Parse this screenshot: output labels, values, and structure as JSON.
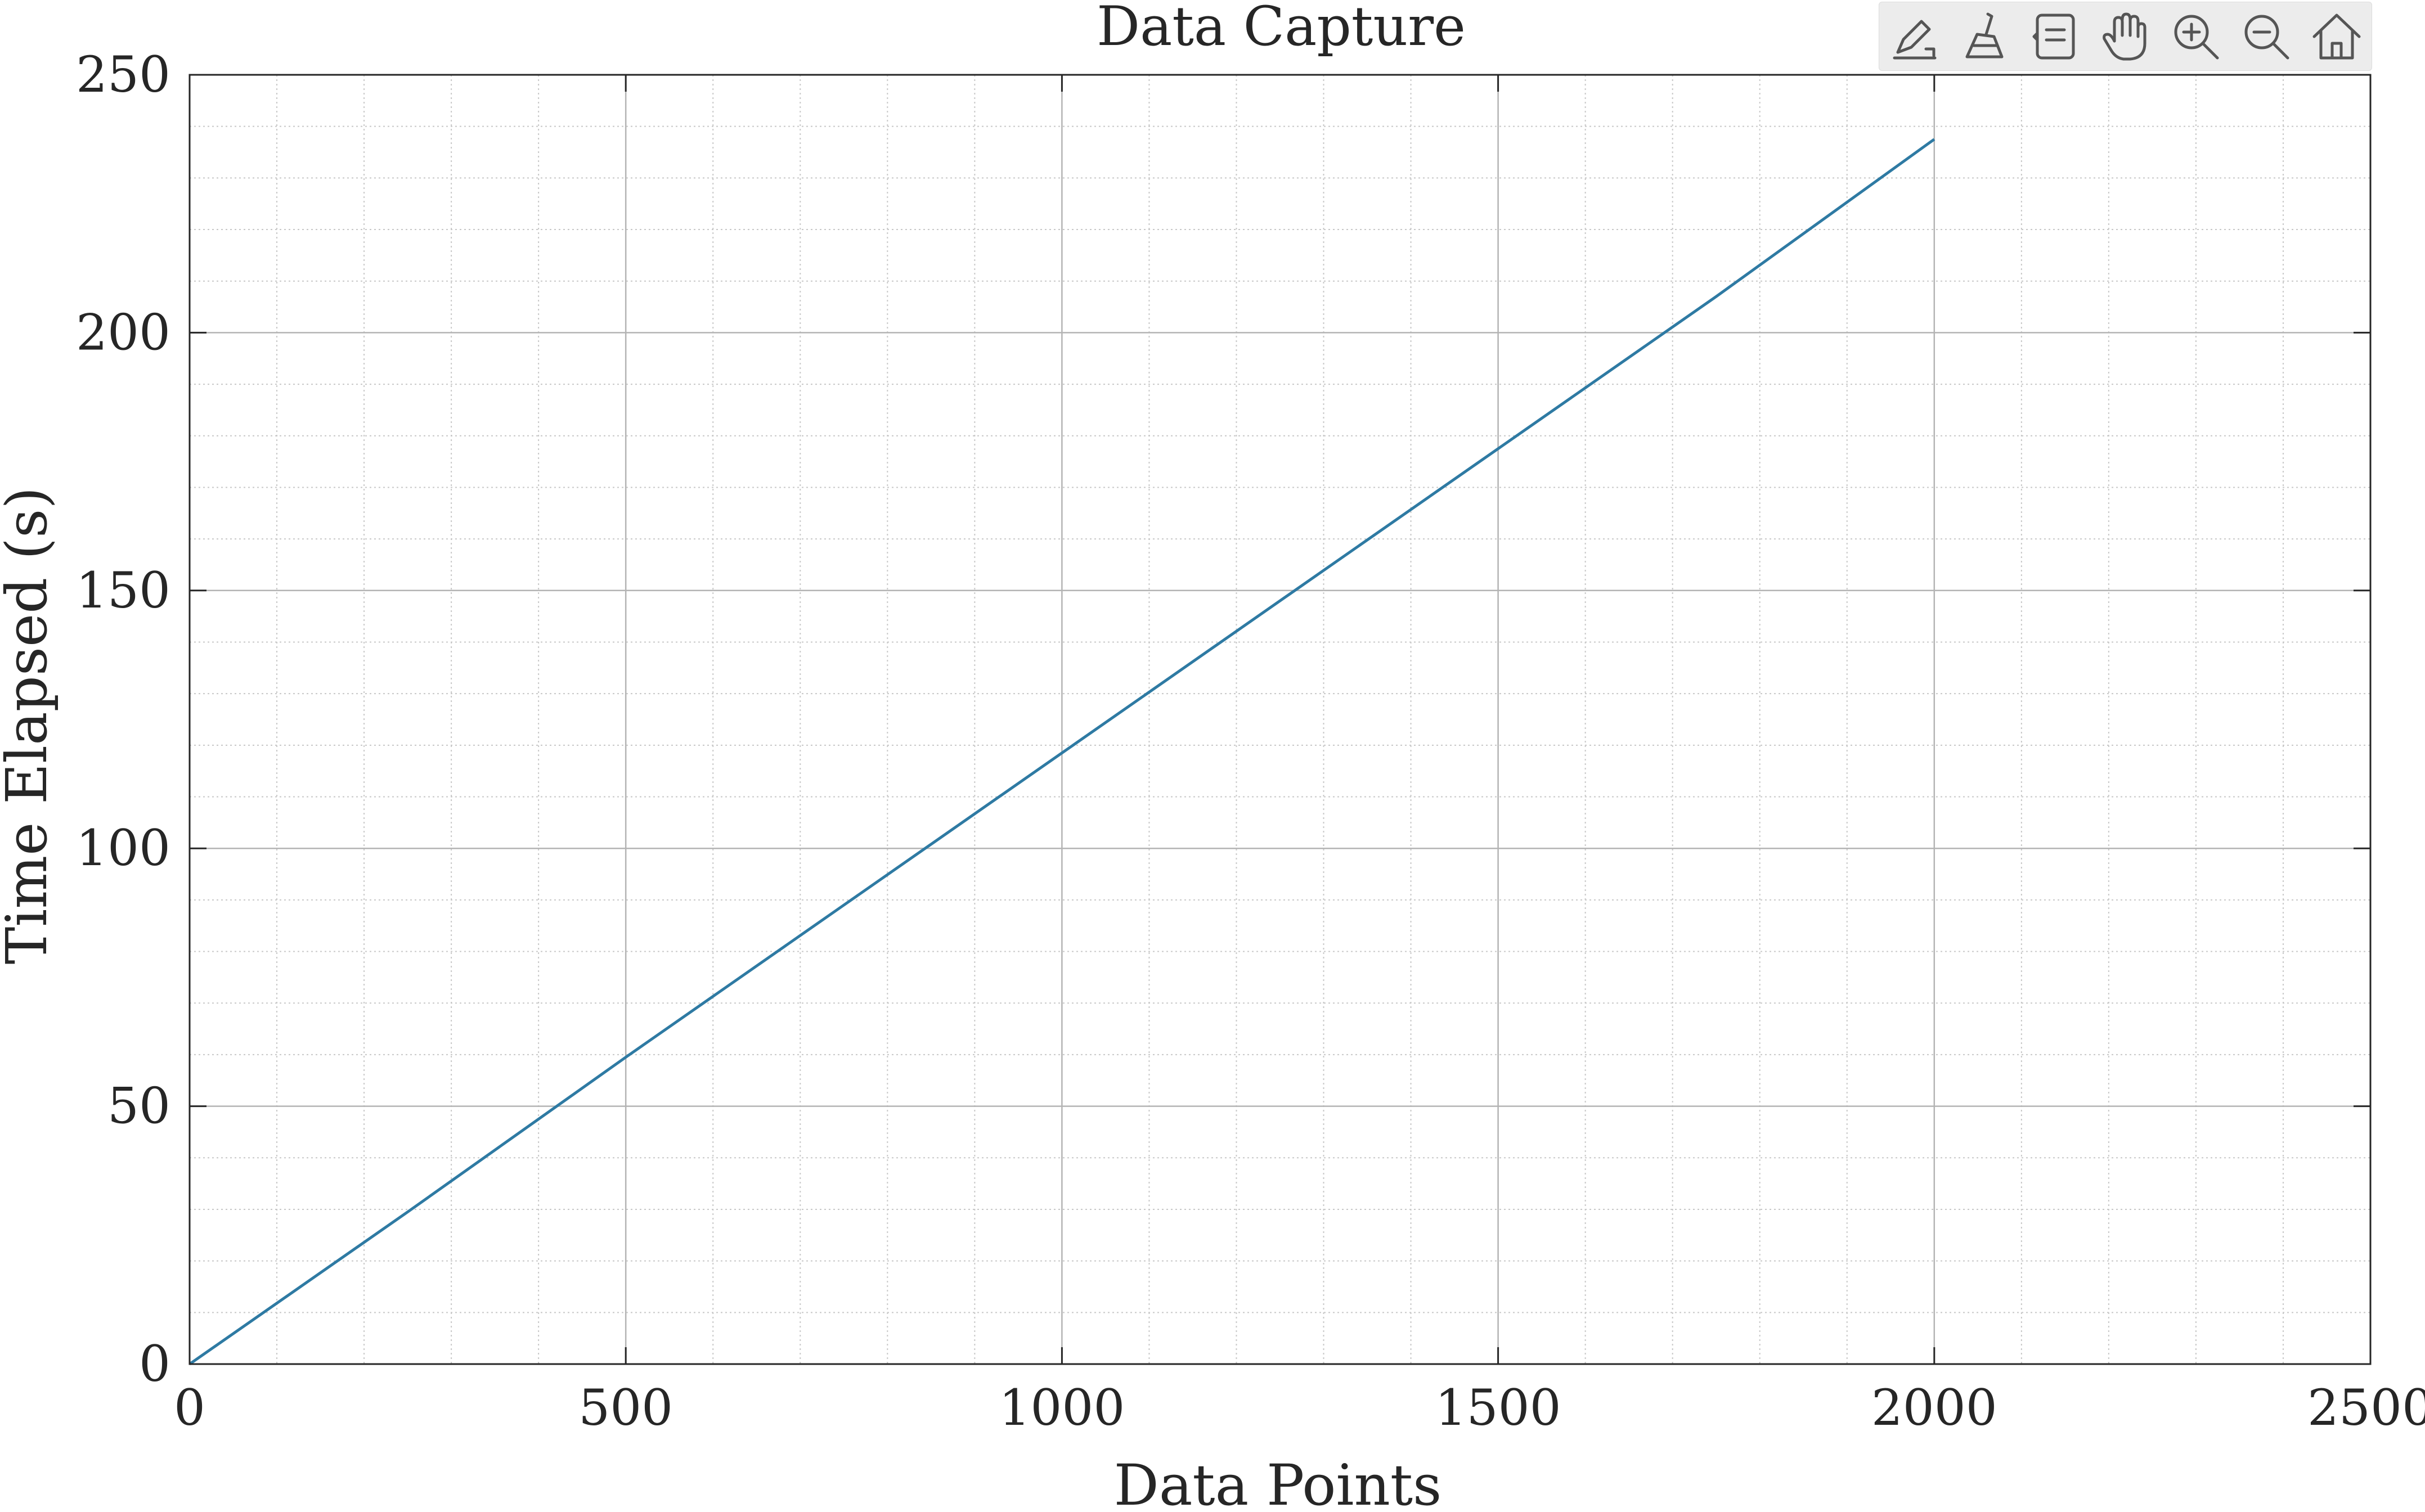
{
  "toolbar": {
    "buttons": [
      {
        "name": "data-tips-button",
        "icon": "edit-icon"
      },
      {
        "name": "brush-button",
        "icon": "brush-icon"
      },
      {
        "name": "data-tip-box-button",
        "icon": "datatip-icon"
      },
      {
        "name": "pan-button",
        "icon": "hand-icon"
      },
      {
        "name": "zoom-in-button",
        "icon": "zoom-in-icon"
      },
      {
        "name": "zoom-out-button",
        "icon": "zoom-out-icon"
      },
      {
        "name": "restore-view-button",
        "icon": "home-icon"
      }
    ]
  },
  "chart_data": {
    "type": "line",
    "title": "Data Capture",
    "xlabel": "Data Points",
    "ylabel": "Time Elapsed (s)",
    "xlim": [
      0,
      2500
    ],
    "ylim": [
      0,
      250
    ],
    "xticks": [
      "0",
      "500",
      "1000",
      "1500",
      "2000",
      "2500"
    ],
    "yticks": [
      "0",
      "50",
      "100",
      "150",
      "200",
      "250"
    ],
    "grid": true,
    "minor_grid": true,
    "line_color": "#2e7aa3",
    "series": [
      {
        "x": [
          0,
          250,
          500,
          750,
          1000,
          1250,
          1500,
          1750,
          2000
        ],
        "y": [
          0,
          29.5,
          59.5,
          89,
          118.5,
          148,
          177.5,
          207,
          237.5
        ]
      }
    ]
  }
}
